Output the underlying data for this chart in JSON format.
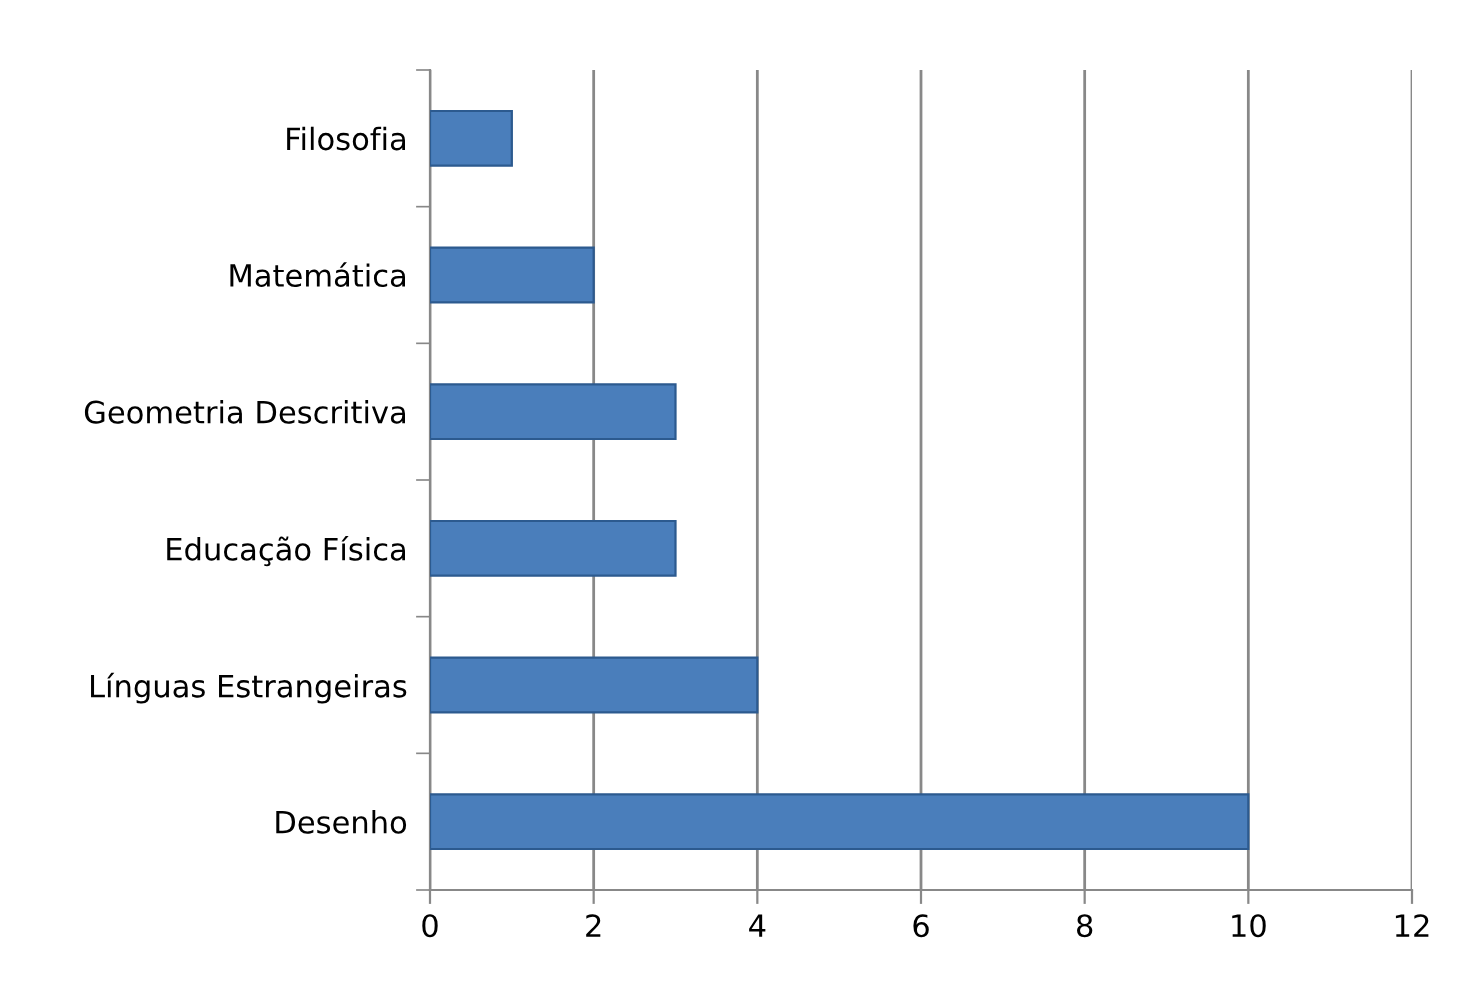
{
  "chart_data": {
    "type": "bar",
    "orientation": "horizontal",
    "categories": [
      "Filosofia",
      "Matemática",
      "Geometria Descritiva",
      "Educação Física",
      "Línguas Estrangeiras",
      "Desenho"
    ],
    "values": [
      1,
      2,
      3,
      3,
      4,
      10
    ],
    "color": "#4a7ebb",
    "xlim": [
      0,
      12
    ],
    "xticks": [
      0,
      2,
      4,
      6,
      8,
      10,
      12
    ],
    "grid": "x",
    "legend": false
  }
}
